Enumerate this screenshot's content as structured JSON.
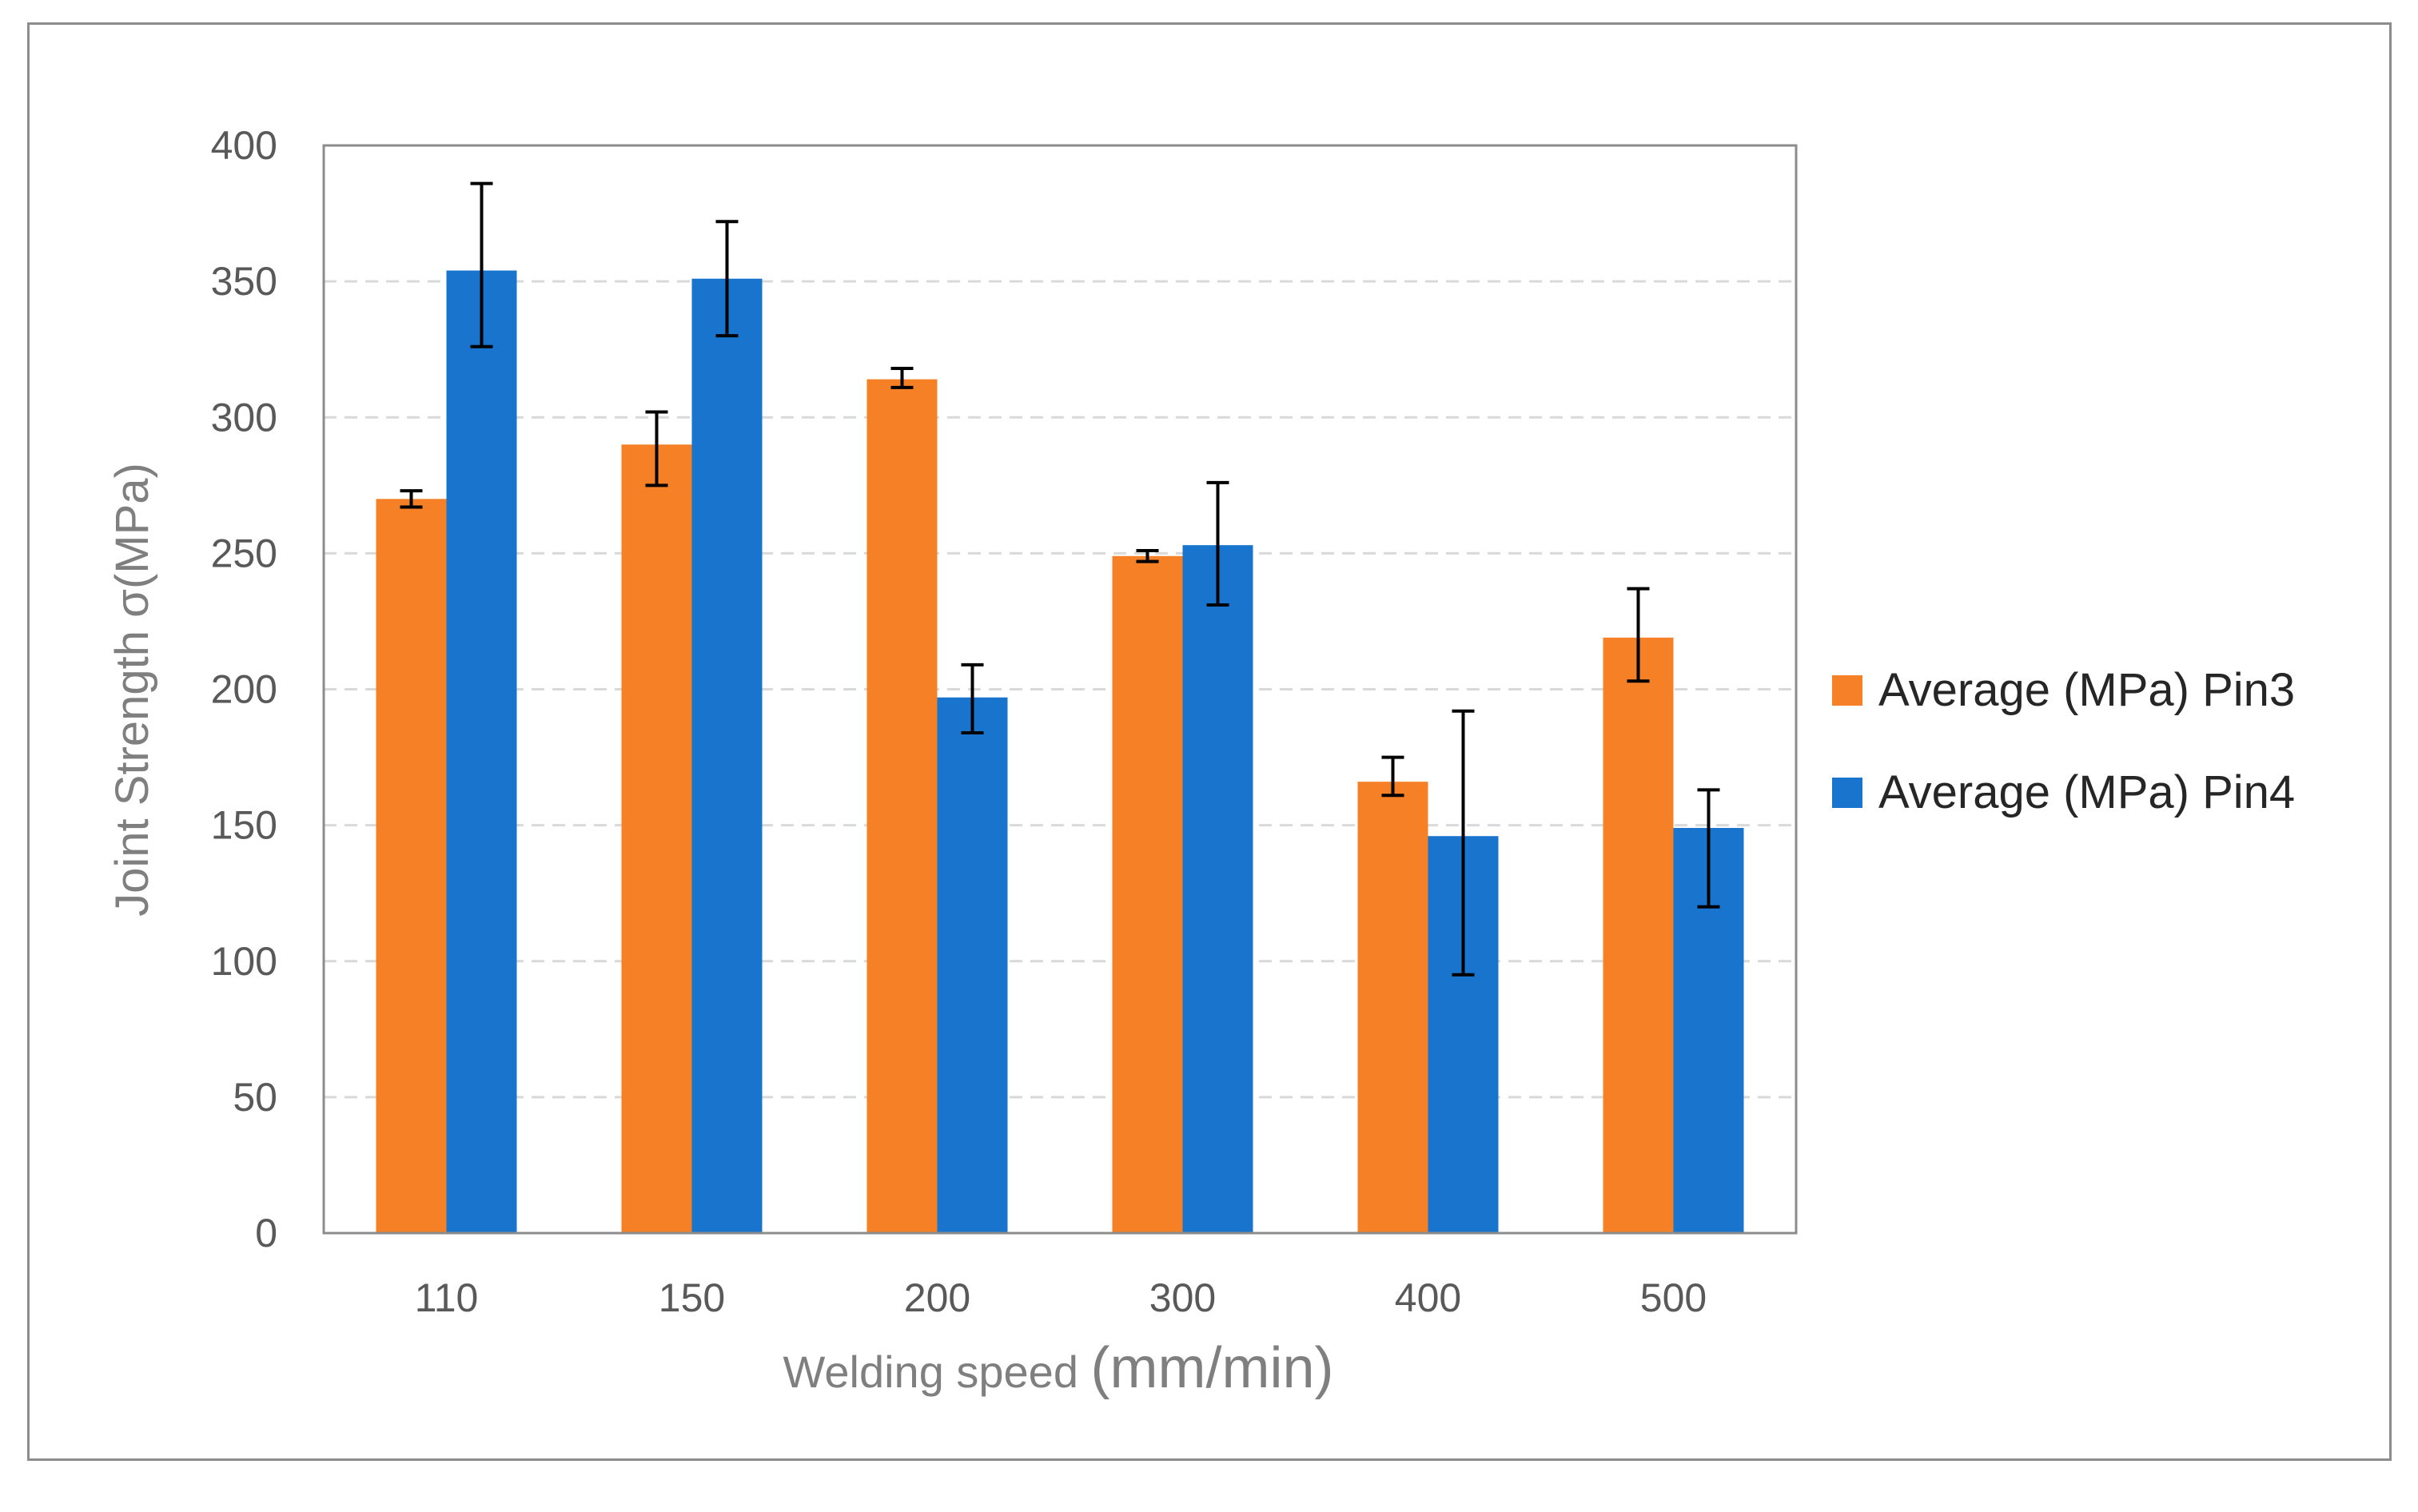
{
  "chart_data": {
    "type": "bar",
    "title": "",
    "xlabel_part1": "Welding speed ",
    "xlabel_part2": "(mm/min)",
    "ylabel": "Joint Strength σ(MPa)",
    "categories": [
      "110",
      "150",
      "200",
      "300",
      "400",
      "500"
    ],
    "ylim": [
      0,
      400
    ],
    "ytick_step": 50,
    "yticks": [
      "0",
      "50",
      "100",
      "150",
      "200",
      "250",
      "300",
      "350",
      "400"
    ],
    "grid": true,
    "legend_position": "right",
    "series": [
      {
        "name": "Average (MPa) Pin3",
        "color": "#f58025",
        "values": [
          270,
          290,
          314,
          249,
          166,
          219
        ],
        "error_low": [
          267,
          275,
          311,
          247,
          161,
          203
        ],
        "error_high": [
          273,
          302,
          318,
          251,
          175,
          237
        ]
      },
      {
        "name": "Average (MPa) Pin4",
        "color": "#1874cd",
        "values": [
          354,
          351,
          197,
          253,
          146,
          149
        ],
        "error_low": [
          326,
          330,
          184,
          231,
          95,
          120
        ],
        "error_high": [
          386,
          372,
          209,
          276,
          192,
          163
        ]
      }
    ]
  }
}
